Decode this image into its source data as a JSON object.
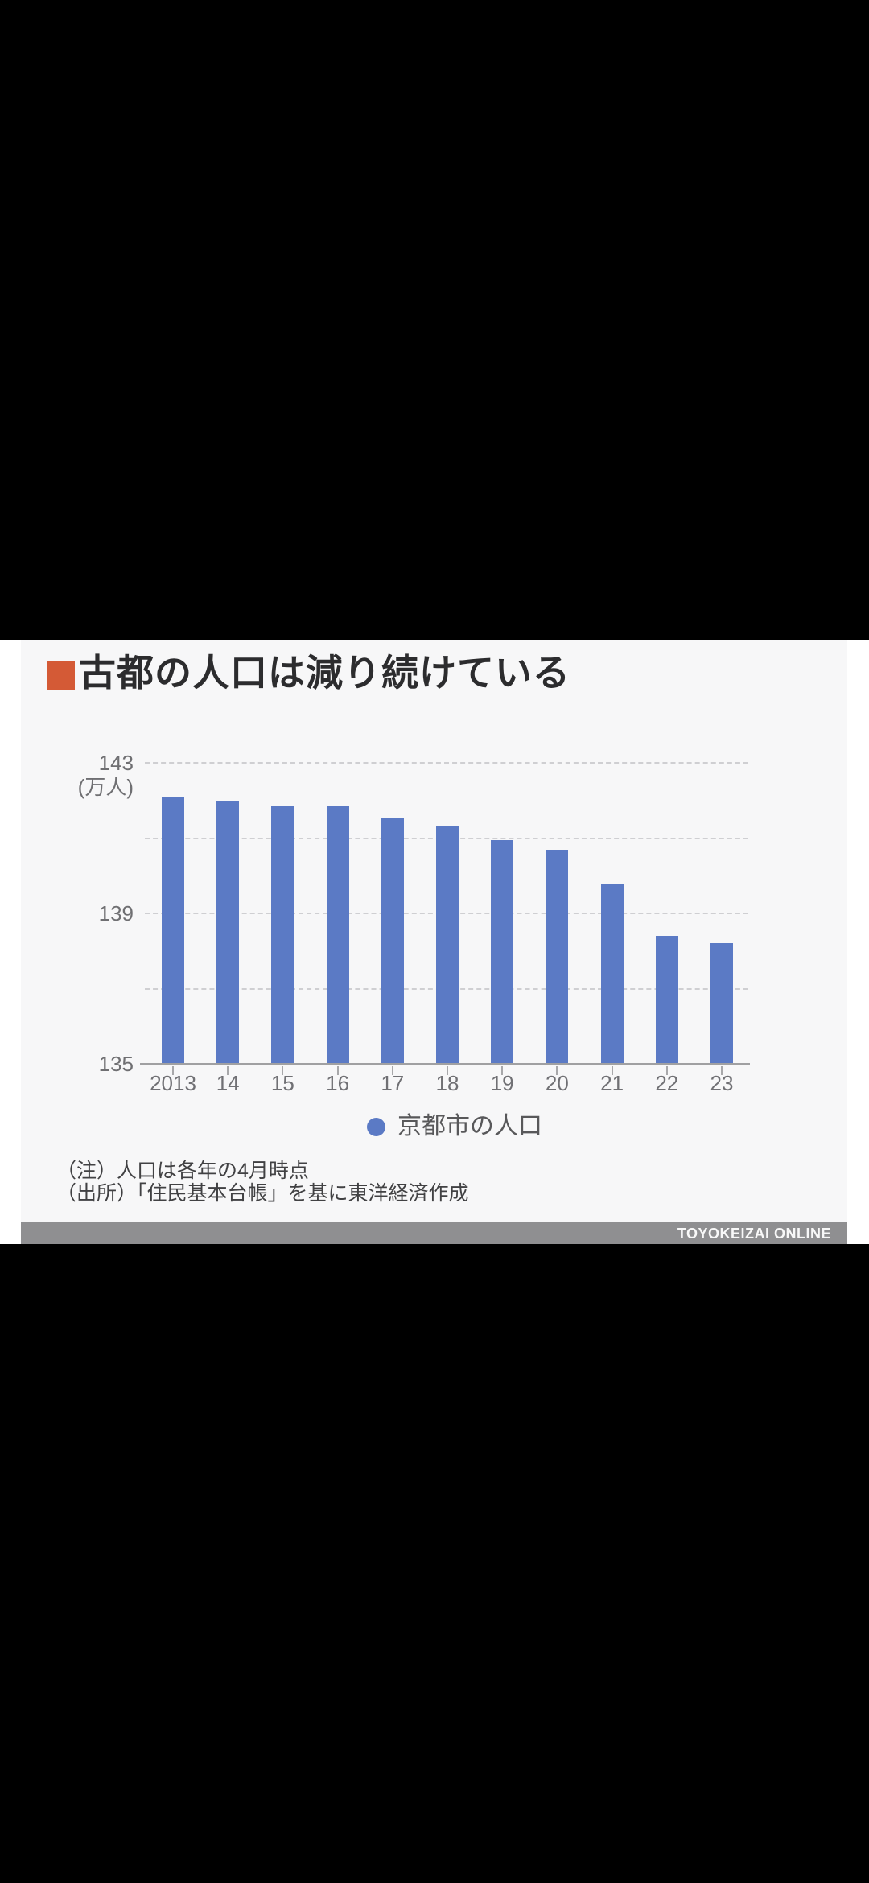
{
  "footer": {
    "brand": "TOYOKEIZAI ONLINE"
  },
  "colors": {
    "title_accent_orange": "#d45a36",
    "bar_blue": "#5b7ac5",
    "chart_background": "#f7f7f8",
    "footer_gray": "#8f8f91",
    "letterbox_black": "#000000",
    "gridline_gray": "#cfcfd2"
  },
  "chart_data": {
    "type": "bar",
    "title": "古都の人口は減り続けている",
    "unit_label": "(万人)",
    "categories": [
      "2013",
      "14",
      "15",
      "16",
      "17",
      "18",
      "19",
      "20",
      "21",
      "22",
      "23"
    ],
    "values": [
      142.1,
      142.0,
      141.85,
      141.85,
      141.55,
      141.3,
      140.95,
      140.7,
      139.8,
      138.4,
      138.2
    ],
    "series_name": "京都市の人口",
    "legend_label": "京都市の人口",
    "legend_position": "bottom",
    "ylim": [
      135,
      143
    ],
    "ytick_labels": [
      "143",
      "139",
      "135"
    ],
    "ytick_values": [
      143,
      139,
      135
    ],
    "gridline_values": [
      143,
      141,
      139,
      137
    ],
    "grid": true,
    "xlabel": "",
    "ylabel": "万人",
    "note": "（注）人口は各年の4月時点",
    "source": "（出所）「住民基本台帳」を基に東洋経済作成"
  }
}
